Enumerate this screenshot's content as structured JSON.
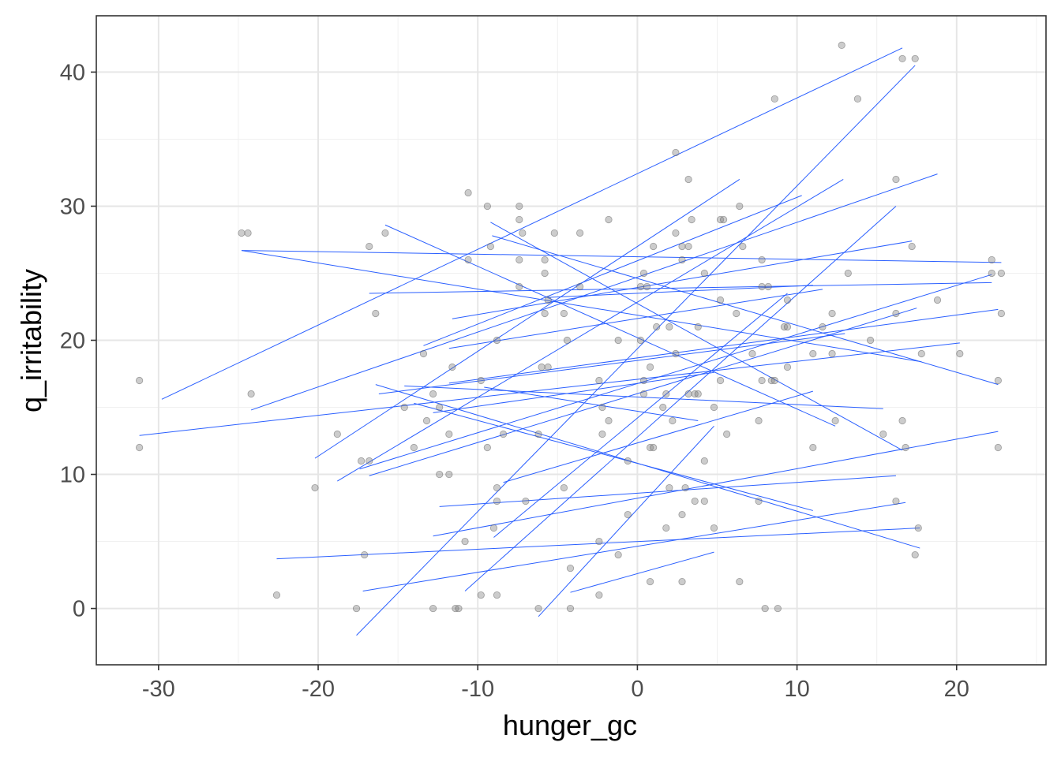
{
  "chart_data": {
    "type": "scatter",
    "title": "",
    "xlabel": "hunger_gc",
    "ylabel": "q_irritability",
    "xlim": [
      -33.9,
      25.6
    ],
    "ylim": [
      -4.2,
      44.2
    ],
    "xticks": [
      -30,
      -20,
      -10,
      0,
      10,
      20
    ],
    "yticks": [
      0,
      10,
      20,
      30,
      40
    ],
    "grid": true,
    "colors": {
      "points": "#7f7f7f",
      "lines": "#2a5fff",
      "panel_border": "#333333"
    },
    "points": [
      [
        -31.2,
        17
      ],
      [
        -31.2,
        12
      ],
      [
        -24.8,
        28
      ],
      [
        -24.4,
        28
      ],
      [
        -24.2,
        16
      ],
      [
        -22.6,
        1
      ],
      [
        -20.2,
        9
      ],
      [
        -18.8,
        13
      ],
      [
        -17.6,
        0
      ],
      [
        -17.3,
        11
      ],
      [
        -17.1,
        4
      ],
      [
        -16.8,
        11
      ],
      [
        -16.8,
        27
      ],
      [
        -16.4,
        22
      ],
      [
        -15.8,
        28
      ],
      [
        -14.6,
        15
      ],
      [
        -14,
        12
      ],
      [
        -13.4,
        19
      ],
      [
        -13.2,
        14
      ],
      [
        -12.8,
        16
      ],
      [
        -12.8,
        0
      ],
      [
        -12.4,
        10
      ],
      [
        -12.4,
        15
      ],
      [
        -11.8,
        10
      ],
      [
        -11.8,
        13
      ],
      [
        -11.6,
        18
      ],
      [
        -11.4,
        0
      ],
      [
        -11.2,
        0
      ],
      [
        -10.8,
        5
      ],
      [
        -10.6,
        31
      ],
      [
        -10.6,
        26
      ],
      [
        -9.8,
        17
      ],
      [
        -9.8,
        1
      ],
      [
        -9.4,
        30
      ],
      [
        -9.4,
        12
      ],
      [
        -9.2,
        27
      ],
      [
        -9,
        6
      ],
      [
        -8.8,
        9
      ],
      [
        -8.8,
        8
      ],
      [
        -8.8,
        1
      ],
      [
        -8.8,
        20
      ],
      [
        -8.4,
        13
      ],
      [
        -7.4,
        30
      ],
      [
        -7.4,
        29
      ],
      [
        -7.2,
        28
      ],
      [
        -7.4,
        26
      ],
      [
        -7.4,
        24
      ],
      [
        -7,
        8
      ],
      [
        -6.2,
        13
      ],
      [
        -6.2,
        0
      ],
      [
        -6,
        18
      ],
      [
        -5.8,
        26
      ],
      [
        -5.8,
        25
      ],
      [
        -5.8,
        22
      ],
      [
        -5.6,
        18
      ],
      [
        -5.6,
        23
      ],
      [
        -5.2,
        28
      ],
      [
        -4.6,
        22
      ],
      [
        -4.6,
        9
      ],
      [
        -4.4,
        20
      ],
      [
        -4.2,
        3
      ],
      [
        -4.2,
        0
      ],
      [
        -3.6,
        24
      ],
      [
        -3.6,
        28
      ],
      [
        -2.4,
        1
      ],
      [
        -2.4,
        5
      ],
      [
        -2.2,
        15
      ],
      [
        -2.2,
        13
      ],
      [
        -2.4,
        17
      ],
      [
        -1.8,
        29
      ],
      [
        -1.8,
        14
      ],
      [
        -1.2,
        4
      ],
      [
        -1.2,
        20
      ],
      [
        -0.6,
        11
      ],
      [
        -0.6,
        7
      ],
      [
        0.2,
        24
      ],
      [
        0.2,
        20
      ],
      [
        0.4,
        25
      ],
      [
        0.6,
        24
      ],
      [
        0.4,
        16
      ],
      [
        0.4,
        17
      ],
      [
        0.8,
        18
      ],
      [
        0.8,
        12
      ],
      [
        1,
        12
      ],
      [
        0.8,
        2
      ],
      [
        1,
        27
      ],
      [
        1.2,
        21
      ],
      [
        1.6,
        15
      ],
      [
        1.8,
        6
      ],
      [
        1.8,
        16
      ],
      [
        2,
        21
      ],
      [
        2,
        9
      ],
      [
        2.4,
        34
      ],
      [
        2.4,
        28
      ],
      [
        2.2,
        14
      ],
      [
        2.4,
        19
      ],
      [
        2.8,
        27
      ],
      [
        2.8,
        26
      ],
      [
        2.8,
        7
      ],
      [
        2.8,
        2
      ],
      [
        3,
        9
      ],
      [
        3.2,
        32
      ],
      [
        3.2,
        27
      ],
      [
        3.2,
        16
      ],
      [
        3.4,
        29
      ],
      [
        3.6,
        16
      ],
      [
        3.6,
        8
      ],
      [
        3.8,
        16
      ],
      [
        3.8,
        21
      ],
      [
        4.2,
        25
      ],
      [
        4.2,
        11
      ],
      [
        4.2,
        8
      ],
      [
        4.8,
        6
      ],
      [
        4.8,
        15
      ],
      [
        5.2,
        29
      ],
      [
        5.4,
        29
      ],
      [
        5.2,
        23
      ],
      [
        5.2,
        17
      ],
      [
        5.6,
        13
      ],
      [
        6.2,
        22
      ],
      [
        6.4,
        30
      ],
      [
        6.4,
        2
      ],
      [
        6.6,
        27
      ],
      [
        7.2,
        19
      ],
      [
        7.6,
        8
      ],
      [
        7.6,
        14
      ],
      [
        7.8,
        26
      ],
      [
        7.8,
        24
      ],
      [
        7.8,
        17
      ],
      [
        8,
        0
      ],
      [
        8.2,
        24
      ],
      [
        8.4,
        17
      ],
      [
        8.6,
        17
      ],
      [
        8.6,
        38
      ],
      [
        8.8,
        0
      ],
      [
        9.2,
        21
      ],
      [
        9.4,
        21
      ],
      [
        9.4,
        23
      ],
      [
        9.4,
        18
      ],
      [
        11,
        19
      ],
      [
        11,
        12
      ],
      [
        11.6,
        21
      ],
      [
        12.2,
        22
      ],
      [
        12.2,
        19
      ],
      [
        12.4,
        14
      ],
      [
        12.8,
        42
      ],
      [
        13.2,
        25
      ],
      [
        13.8,
        38
      ],
      [
        14.6,
        20
      ],
      [
        15.4,
        13
      ],
      [
        16.2,
        32
      ],
      [
        16.2,
        22
      ],
      [
        16.2,
        8
      ],
      [
        16.6,
        14
      ],
      [
        16.6,
        41
      ],
      [
        16.8,
        12
      ],
      [
        17.2,
        27
      ],
      [
        17.4,
        41
      ],
      [
        17.4,
        4
      ],
      [
        17.6,
        6
      ],
      [
        17.8,
        19
      ],
      [
        18.8,
        23
      ],
      [
        20.2,
        19
      ],
      [
        22.2,
        26
      ],
      [
        22.2,
        25
      ],
      [
        22.6,
        17
      ],
      [
        22.6,
        12
      ],
      [
        22.8,
        25
      ],
      [
        22.8,
        22
      ]
    ],
    "lines": [
      [
        -29.8,
        15.6,
        16.6,
        41.8
      ],
      [
        -31.2,
        12.9,
        20.2,
        19.8
      ],
      [
        -24.8,
        26.7,
        22.8,
        25.8
      ],
      [
        -24.8,
        26.7,
        17.8,
        18.4
      ],
      [
        -24.2,
        14.8,
        18.8,
        32.4
      ],
      [
        -22.6,
        3.7,
        17.7,
        6.0
      ],
      [
        -20.2,
        11.2,
        6.4,
        32.0
      ],
      [
        -18.8,
        9.5,
        12.9,
        32.0
      ],
      [
        -17.6,
        -2.0,
        17.4,
        40.5
      ],
      [
        -17.4,
        10.4,
        22.2,
        24.9
      ],
      [
        -16.8,
        9.9,
        17.5,
        22.4
      ],
      [
        -16.8,
        23.5,
        22.2,
        24.3
      ],
      [
        -16.4,
        16.7,
        17.7,
        4.5
      ],
      [
        -15.8,
        28.6,
        12.4,
        13.6
      ],
      [
        -17.2,
        1.3,
        16.8,
        7.9
      ],
      [
        -14.6,
        16.6,
        15.4,
        14.9
      ],
      [
        -14,
        15.3,
        11,
        7.3
      ],
      [
        -13.4,
        19.6,
        10.3,
        30.8
      ],
      [
        -12.8,
        5.4,
        22.6,
        13.2
      ],
      [
        -12.8,
        14.6,
        4.8,
        17.6
      ],
      [
        -12.4,
        7.6,
        16.2,
        9.9
      ],
      [
        -11.8,
        16.8,
        22.6,
        22.3
      ],
      [
        -11.6,
        21.6,
        17.2,
        27.4
      ],
      [
        -11.8,
        19.4,
        11.6,
        23.8
      ],
      [
        -9.2,
        28.8,
        16.6,
        11.8
      ],
      [
        -10.8,
        1.3,
        16.2,
        30
      ],
      [
        -4.2,
        1.2,
        4.8,
        4.2
      ],
      [
        -8.4,
        9.4,
        11,
        16.2
      ],
      [
        -6.2,
        -0.6,
        4.8,
        13.6
      ],
      [
        -9.1,
        27.8,
        22.6,
        16.7
      ],
      [
        -5.6,
        23.2,
        11,
        24.1
      ],
      [
        -9.6,
        16.5,
        3.8,
        14.0
      ],
      [
        -9,
        5.3,
        9.4,
        23.5
      ],
      [
        -16.2,
        16.0,
        13.0,
        20.5
      ]
    ]
  }
}
